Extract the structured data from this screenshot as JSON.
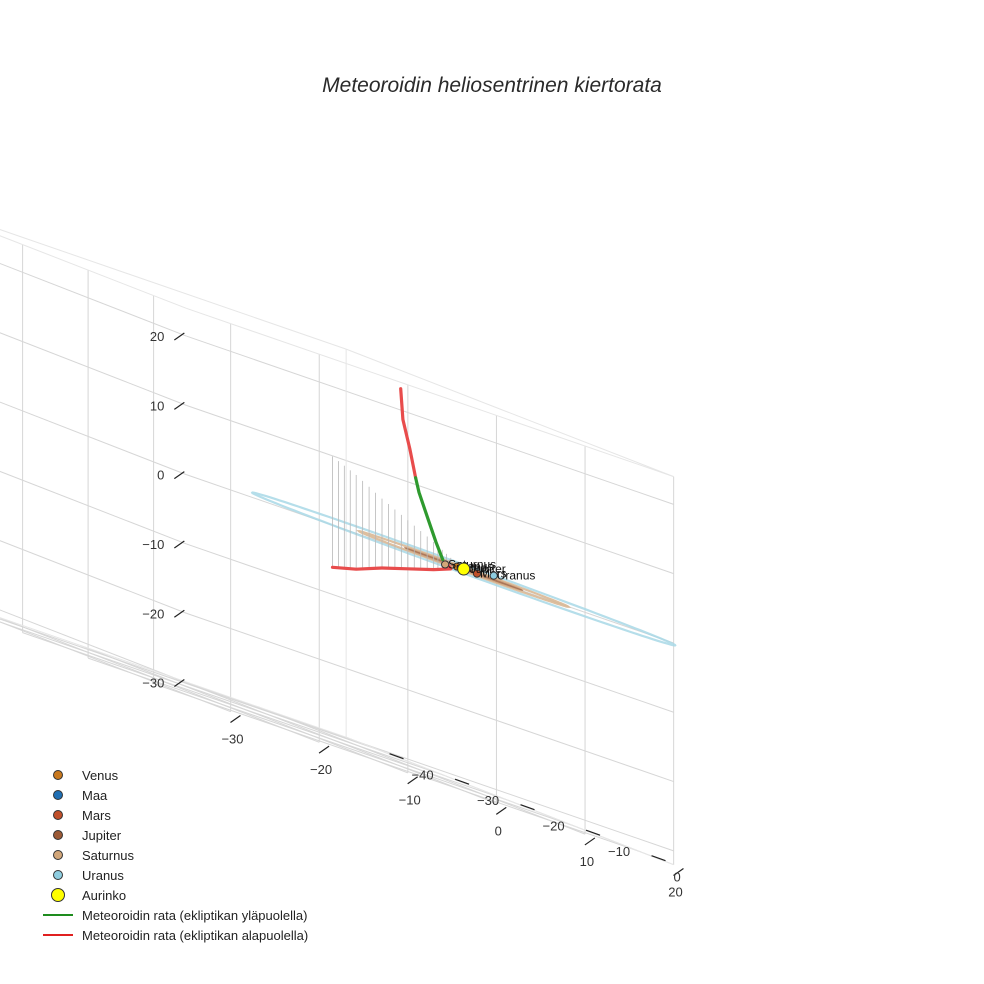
{
  "chart_data": {
    "type": "scatter3d",
    "title": "Meteoroidin heliosentrinen kiertorata",
    "axes": {
      "x": {
        "range": [
          -35,
          20
        ],
        "ticks": [
          -30,
          -20,
          -10,
          0,
          10,
          20
        ]
      },
      "y": {
        "range": [
          -45,
          5
        ],
        "ticks": [
          -40,
          -30,
          -20,
          -10,
          0
        ]
      },
      "z": {
        "range": [
          -32,
          24
        ],
        "ticks": [
          -30,
          -20,
          -10,
          0,
          10,
          20
        ]
      }
    },
    "planets": [
      {
        "name": "Venus",
        "color": "#c8781e",
        "x": -0.3,
        "y": -0.6,
        "z": 0
      },
      {
        "name": "Maa",
        "color": "#1f6fb4",
        "x": -0.7,
        "y": 0.5,
        "z": 0
      },
      {
        "name": "Mars",
        "color": "#c0502a",
        "x": 1.5,
        "y": 0.0,
        "z": 0
      },
      {
        "name": "Jupiter",
        "color": "#9c5a36",
        "x": 3.3,
        "y": -4.0,
        "z": 0
      },
      {
        "name": "Saturnus",
        "color": "#d2a679",
        "x": -6.9,
        "y": 6.5,
        "z": 0
      },
      {
        "name": "Uranus",
        "color": "#8ecde0",
        "x": 13.0,
        "y": -13.0,
        "z": 0
      },
      {
        "name": "Aurinko",
        "color": "#ffff00",
        "x": 0,
        "y": 0,
        "z": 0
      }
    ],
    "orbits": [
      {
        "name": "Venus",
        "radius": 0.72,
        "color": "#d2691e"
      },
      {
        "name": "Maa",
        "radius": 1.0,
        "color": "#1f6fb4"
      },
      {
        "name": "Mars",
        "radius": 1.52,
        "color": "#c0502a"
      },
      {
        "name": "Jupiter",
        "radius": 5.2,
        "color": "#a0623f"
      },
      {
        "name": "Saturnus",
        "radius": 9.5,
        "color": "#d7b48e"
      },
      {
        "name": "Uranus",
        "radius": 19.2,
        "color": "#a8d8e6"
      }
    ],
    "trajectory_above": {
      "name": "Meteoroidin rata (ekliptikan yläpuolella)",
      "color": "#2e9a2e",
      "points": [
        [
          -2.0,
          -0.5,
          0.3
        ],
        [
          -3.5,
          0.5,
          2.5
        ],
        [
          -5.5,
          2.0,
          5.5
        ],
        [
          -8.0,
          4.0,
          9.0
        ],
        [
          -9.5,
          5.5,
          11.0
        ]
      ]
    },
    "trajectory_below": {
      "name": "Meteoroidin rata (ekliptikan alapuolella)",
      "color": "#e84c4c",
      "segments": [
        [
          [
            -9.5,
            5.5,
            11.0
          ],
          [
            -12.0,
            8.0,
            15.0
          ],
          [
            -15.0,
            11.0,
            19.0
          ],
          [
            -18.2,
            15.0,
            23.5
          ]
        ],
        [
          [
            -1.0,
            -1.2,
            0.0
          ],
          [
            1.5,
            -4.0,
            -0.8
          ],
          [
            4.0,
            -10.0,
            -2.0
          ],
          [
            7.0,
            -18.0,
            -3.5
          ],
          [
            10.0,
            -26.0,
            -5.0
          ],
          [
            13.0,
            -34.0,
            -6.8
          ],
          [
            15.5,
            -41.0,
            -8.0
          ]
        ]
      ]
    }
  },
  "legend": [
    {
      "label": "Venus",
      "color": "#c8781e",
      "kind": "dot"
    },
    {
      "label": "Maa",
      "color": "#1f6fb4",
      "kind": "dot"
    },
    {
      "label": "Mars",
      "color": "#c0502a",
      "kind": "dot"
    },
    {
      "label": "Jupiter",
      "color": "#9c5a36",
      "kind": "dot"
    },
    {
      "label": "Saturnus",
      "color": "#d2a679",
      "kind": "dot"
    },
    {
      "label": "Uranus",
      "color": "#8ecde0",
      "kind": "dot"
    },
    {
      "label": "Aurinko",
      "color": "#ffff00",
      "kind": "sun"
    },
    {
      "label": "Meteoroidin rata (ekliptikan yläpuolella)",
      "color": "#1e8c1e",
      "kind": "line"
    },
    {
      "label": "Meteoroidin rata (ekliptikan alapuolella)",
      "color": "#e02020",
      "kind": "line"
    }
  ]
}
